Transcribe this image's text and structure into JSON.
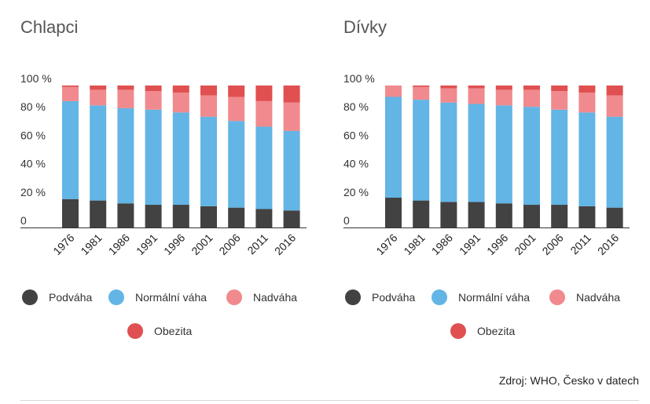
{
  "colors": {
    "Podváha": "#424242",
    "Normální váha": "#62b5e5",
    "Nadváha": "#f08a8e",
    "Obezita": "#e05050"
  },
  "source": "Zdroj: WHO, Česko v datech",
  "chart_data": [
    {
      "type": "bar",
      "stacked": true,
      "title": "Chlapci",
      "categories": [
        "1976",
        "1981",
        "1986",
        "1991",
        "1996",
        "2001",
        "2006",
        "2011",
        "2016"
      ],
      "yticks": [
        "0",
        "20 %",
        "40 %",
        "60 %",
        "80 %",
        "100 %"
      ],
      "ylim": [
        0,
        100
      ],
      "grid": false,
      "legend_position": "bottom",
      "series": [
        {
          "name": "Podváha",
          "values": [
            20,
            19,
            17,
            16,
            16,
            15,
            14,
            13,
            12
          ]
        },
        {
          "name": "Normální váha",
          "values": [
            69,
            67,
            67,
            67,
            65,
            63,
            61,
            58,
            56
          ]
        },
        {
          "name": "Nadváha",
          "values": [
            10,
            11,
            13,
            13,
            14,
            15,
            17,
            18,
            20
          ]
        },
        {
          "name": "Obezita",
          "values": [
            1,
            3,
            3,
            4,
            5,
            7,
            8,
            11,
            12
          ]
        }
      ]
    },
    {
      "type": "bar",
      "stacked": true,
      "title": "Dívky",
      "categories": [
        "1976",
        "1981",
        "1986",
        "1991",
        "1996",
        "2001",
        "2006",
        "2011",
        "2016"
      ],
      "yticks": [
        "0",
        "20 %",
        "40 %",
        "60 %",
        "80 %",
        "100 %"
      ],
      "ylim": [
        0,
        100
      ],
      "grid": false,
      "legend_position": "bottom",
      "series": [
        {
          "name": "Podváha",
          "values": [
            21,
            19,
            18,
            18,
            17,
            16,
            16,
            15,
            14
          ]
        },
        {
          "name": "Normální váha",
          "values": [
            71,
            71,
            70,
            69,
            69,
            69,
            67,
            66,
            64
          ]
        },
        {
          "name": "Nadváha",
          "values": [
            8,
            9,
            10,
            11,
            11,
            12,
            13,
            14,
            15
          ]
        },
        {
          "name": "Obezita",
          "values": [
            0,
            1,
            2,
            2,
            3,
            3,
            4,
            5,
            7
          ]
        }
      ]
    }
  ]
}
